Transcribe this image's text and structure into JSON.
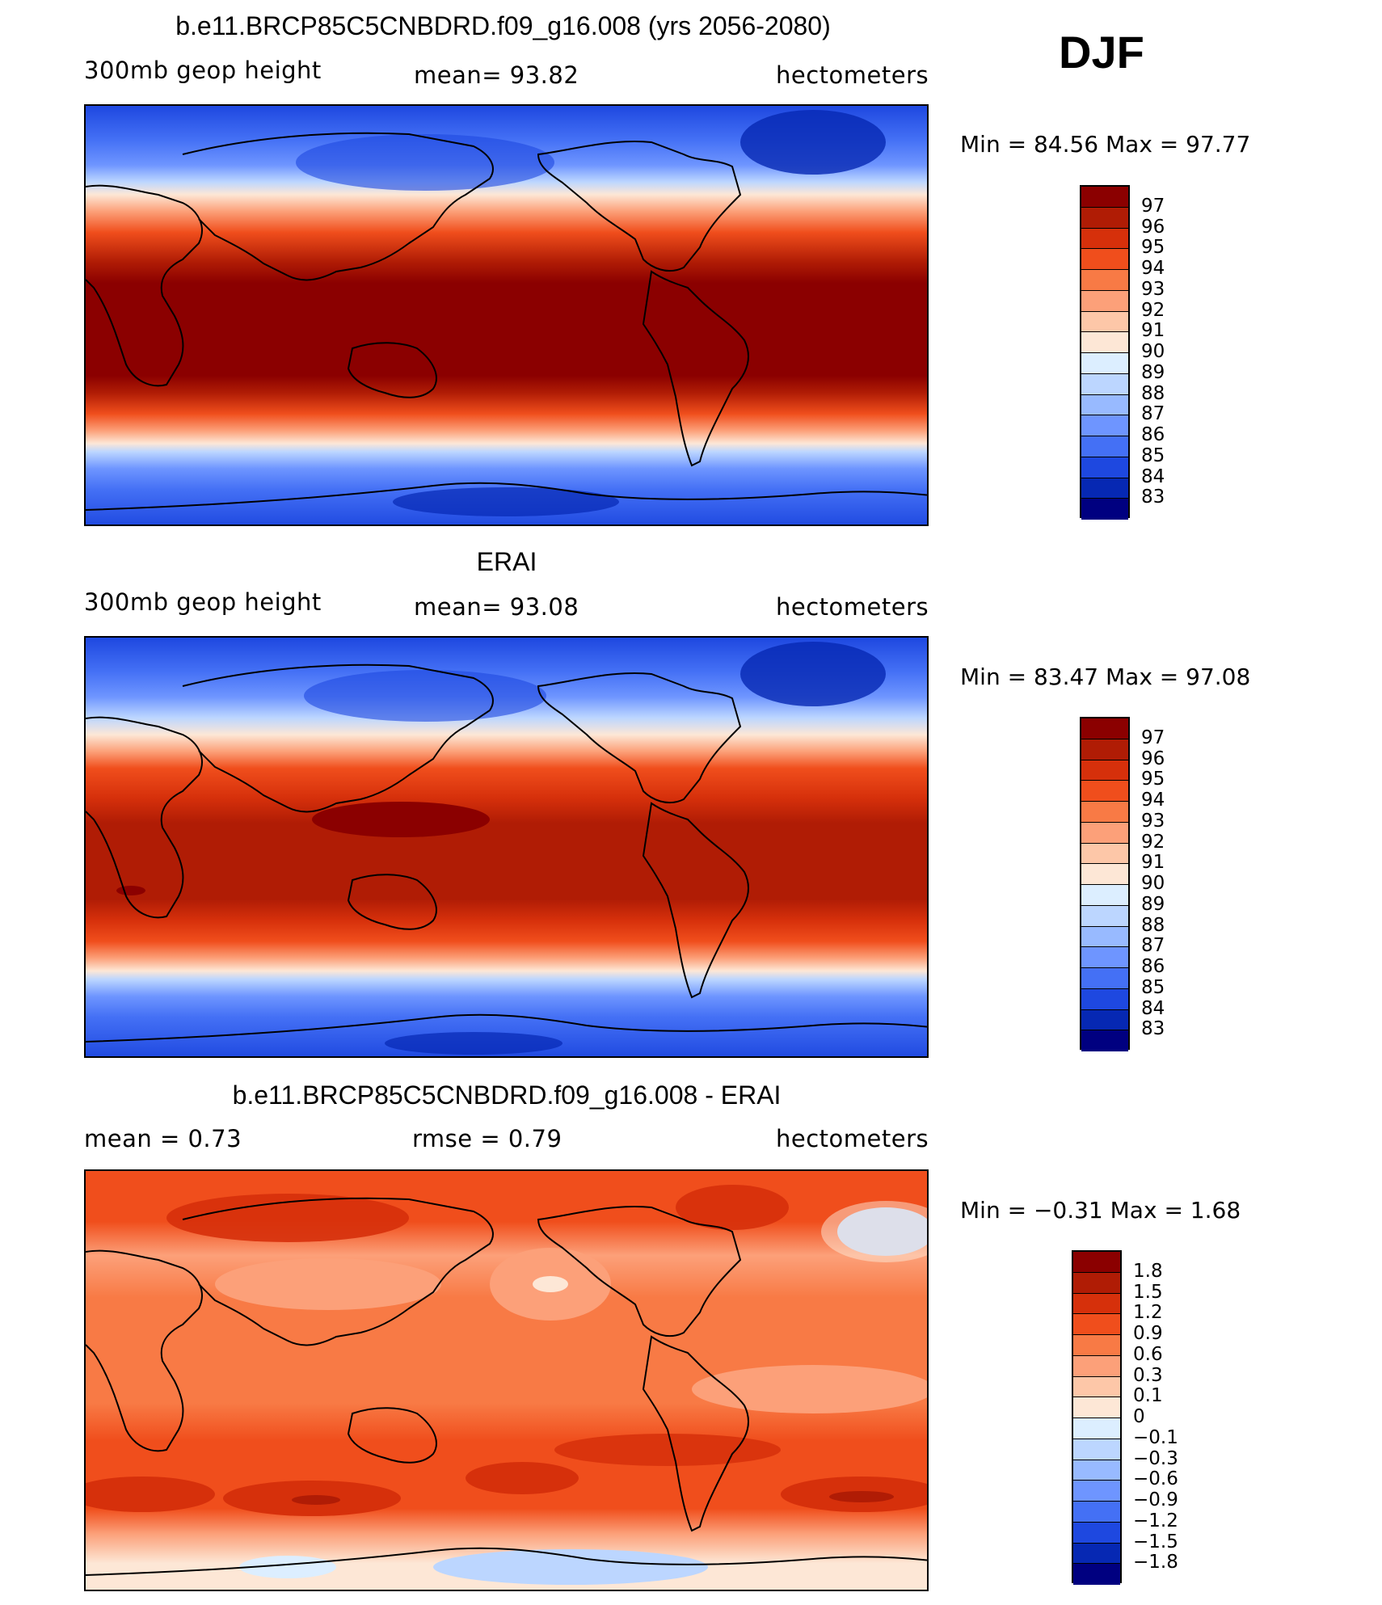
{
  "header": {
    "model_title": "b.e11.BRCP85C5CNBDRD.f09_g16.008 (yrs 2056-2080)",
    "season": "DJF"
  },
  "panels": [
    {
      "id": "model",
      "title": "b.e11.BRCP85C5CNBDRD.f09_g16.008 (yrs 2056-2080)",
      "left_label": "300mb  geop  height",
      "center_label": "mean=   93.82",
      "right_label": "hectometers",
      "min_max": "Min  =    84.56  Max  =    97.77",
      "min": 84.56,
      "max": 97.77,
      "mean": 93.82
    },
    {
      "id": "obs",
      "title": "ERAI",
      "left_label": "300mb  geop  height",
      "center_label": "mean=   93.08",
      "right_label": "hectometers",
      "min_max": "Min  =    83.47  Max  =    97.08",
      "min": 83.47,
      "max": 97.08,
      "mean": 93.08
    },
    {
      "id": "diff",
      "title": "b.e11.BRCP85C5CNBDRD.f09_g16.008 - ERAI",
      "left_label": "mean  =     0.73",
      "center_label": "rmse  =     0.79",
      "right_label": "hectometers",
      "min_max": "Min  =   −0.31  Max  =     1.68",
      "min": -0.31,
      "max": 1.68,
      "mean": 0.73,
      "rmse": 0.79
    }
  ],
  "colorbars": {
    "height": {
      "labels": [
        "97",
        "96",
        "95",
        "94",
        "93",
        "92",
        "91",
        "90",
        "89",
        "88",
        "87",
        "86",
        "85",
        "84",
        "83"
      ],
      "colors": [
        "#8b0000",
        "#b01c05",
        "#d6300b",
        "#f04e1c",
        "#f87a45",
        "#fca079",
        "#fdc7a8",
        "#fde7d6",
        "#dceeff",
        "#bcd6ff",
        "#98baff",
        "#6e95ff",
        "#4470f5",
        "#1e48e0",
        "#0628b3",
        "#000080"
      ]
    },
    "diff": {
      "labels": [
        "1.8",
        "1.5",
        "1.2",
        "0.9",
        "0.6",
        "0.3",
        "0.1",
        "0",
        "−0.1",
        "−0.3",
        "−0.6",
        "−0.9",
        "−1.2",
        "−1.5",
        "−1.8"
      ],
      "colors": [
        "#8b0000",
        "#b01c05",
        "#d6300b",
        "#f04e1c",
        "#f87a45",
        "#fca079",
        "#fdc7a8",
        "#fde7d6",
        "#dceeff",
        "#bcd6ff",
        "#98baff",
        "#6e95ff",
        "#4470f5",
        "#1e48e0",
        "#0628b3",
        "#000080"
      ]
    }
  }
}
